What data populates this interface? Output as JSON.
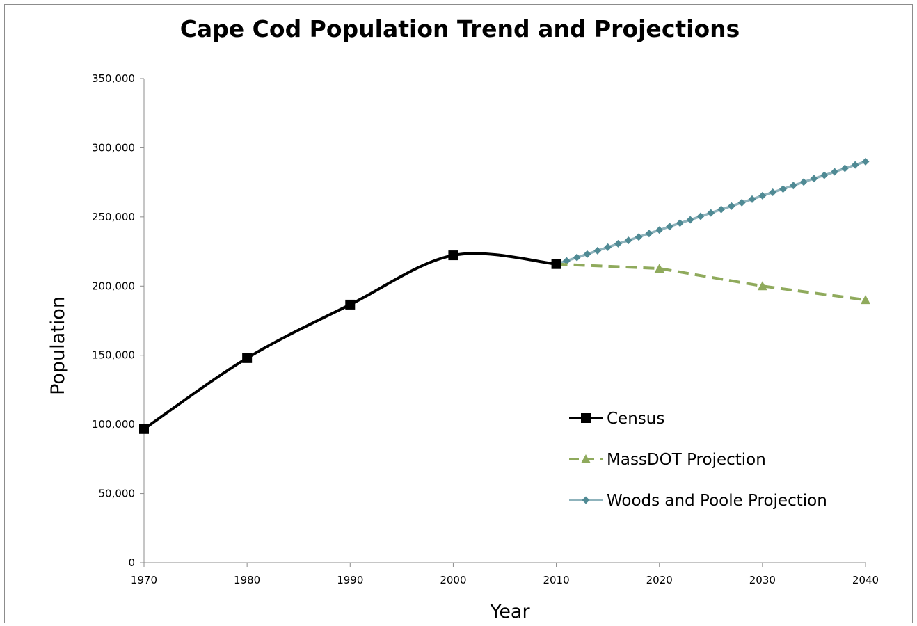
{
  "chart_data": {
    "type": "line",
    "title": "Cape Cod Population Trend and Projections",
    "xlabel": "Year",
    "ylabel": "Population",
    "xlim": [
      1970,
      2040
    ],
    "ylim": [
      0,
      350000
    ],
    "x_ticks": [
      "1970",
      "1980",
      "1990",
      "2000",
      "2010",
      "2020",
      "2030",
      "2040"
    ],
    "y_ticks": [
      "0",
      "50,000",
      "100,000",
      "150,000",
      "200,000",
      "250,000",
      "300,000",
      "350,000"
    ],
    "grid": false,
    "legend_position": "bottom-right",
    "series": [
      {
        "name": "Census",
        "color": "#000000",
        "marker": "square",
        "line": "solid-smooth",
        "x": [
          1970,
          1980,
          1990,
          2000,
          2010
        ],
        "y": [
          96656,
          147925,
          186605,
          222230,
          215888
        ]
      },
      {
        "name": "MassDOT Projection",
        "color": "#8faa5c",
        "marker": "triangle",
        "line": "dashed",
        "x": [
          2010,
          2020,
          2030,
          2040
        ],
        "y": [
          215888,
          212700,
          200000,
          190000
        ]
      },
      {
        "name": "Woods and Poole Projection",
        "color": "#8fb3bc",
        "marker_color": "#4f8a94",
        "marker": "diamond",
        "line": "solid",
        "x": [
          2010,
          2011,
          2012,
          2013,
          2014,
          2015,
          2016,
          2017,
          2018,
          2019,
          2020,
          2021,
          2022,
          2023,
          2024,
          2025,
          2026,
          2027,
          2028,
          2029,
          2030,
          2031,
          2032,
          2033,
          2034,
          2035,
          2036,
          2037,
          2038,
          2039,
          2040
        ],
        "y": [
          215900,
          218200,
          220700,
          223100,
          225600,
          228100,
          230600,
          233000,
          235500,
          238000,
          240500,
          243000,
          245500,
          247900,
          250400,
          252900,
          255400,
          257800,
          260300,
          262800,
          265300,
          267800,
          270200,
          272700,
          275200,
          277700,
          280100,
          282600,
          285100,
          287600,
          290000
        ]
      }
    ]
  }
}
